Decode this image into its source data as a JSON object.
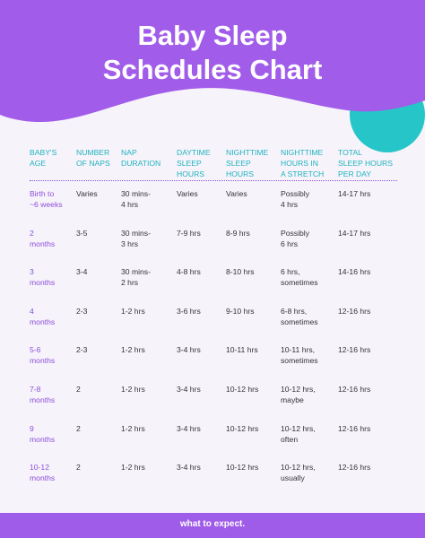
{
  "header": {
    "title": [
      "Baby Sleep",
      "Schedules Chart"
    ]
  },
  "table": {
    "columns": [
      "BABY'S\nAGE",
      "NUMBER\nOF NAPS",
      "NAP\nDURATION",
      "DAYTIME\nSLEEP\nHOURS",
      "NIGHTTIME\nSLEEP\nHOURS",
      "NIGHTTIME\nHOURS IN\nA STRETCH",
      "TOTAL\nSLEEP HOURS\nPER DAY"
    ],
    "rows": [
      [
        "Birth to\n~6 weeks",
        "Varies",
        "30 mins-\n4 hrs",
        "Varies",
        "Varies",
        "Possibly\n4 hrs",
        "14-17 hrs"
      ],
      [
        "2\nmonths",
        "3-5",
        "30 mins-\n3 hrs",
        "7-9 hrs",
        "8-9 hrs",
        "Possibly\n6 hrs",
        "14-17 hrs"
      ],
      [
        "3\nmonths",
        "3-4",
        "30 mins-\n2 hrs",
        "4-8 hrs",
        "8-10 hrs",
        "6 hrs,\nsometimes",
        "14-16 hrs"
      ],
      [
        "4\nmonths",
        "2-3",
        "1-2 hrs",
        "3-6 hrs",
        "9-10 hrs",
        "6-8 hrs,\nsometimes",
        "12-16 hrs"
      ],
      [
        "5-6\nmonths",
        "2-3",
        "1-2 hrs",
        "3-4 hrs",
        "10-11 hrs",
        "10-11 hrs,\nsometimes",
        "12-16 hrs"
      ],
      [
        "7-8\nmonths",
        "2",
        "1-2 hrs",
        "3-4 hrs",
        "10-12 hrs",
        "10-12 hrs,\nmaybe",
        "12-16 hrs"
      ],
      [
        "9\nmonths",
        "2",
        "1-2 hrs",
        "3-4 hrs",
        "10-12 hrs",
        "10-12 hrs,\noften",
        "12-16 hrs"
      ],
      [
        "10-12\nmonths",
        "2",
        "1-2 hrs",
        "3-4 hrs",
        "10-12 hrs",
        "10-12 hrs,\nusually",
        "12-16 hrs"
      ]
    ]
  },
  "footer": {
    "brand": "what to expect."
  }
}
